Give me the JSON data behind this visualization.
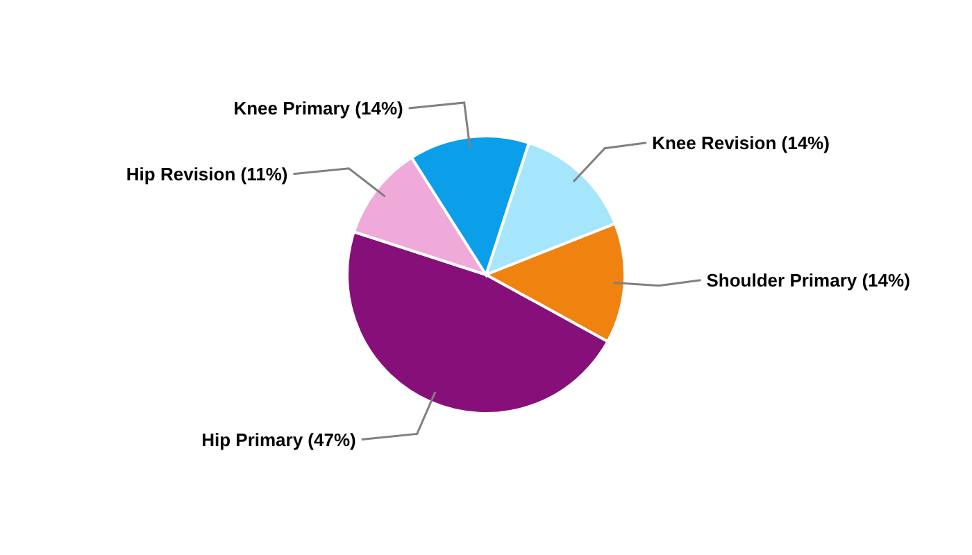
{
  "chart_data": {
    "type": "pie",
    "categories": [
      "Knee Revision",
      "Shoulder Primary",
      "Hip Primary",
      "Hip Revision",
      "Knee Primary"
    ],
    "values": [
      14,
      14,
      47,
      11,
      14
    ],
    "value_labels": [
      "(14%)",
      "(14%)",
      "(47%)",
      "(11%)",
      "(14%)"
    ],
    "colors": [
      "#a6e6fc",
      "#f0820f",
      "#870f7a",
      "#f0aad9",
      "#0a9fe8"
    ]
  }
}
